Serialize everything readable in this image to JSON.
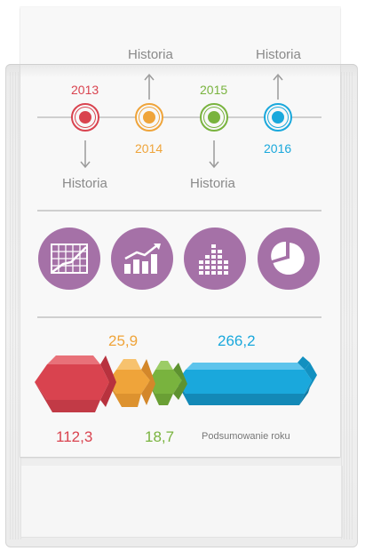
{
  "colors": {
    "red": "#d9434f",
    "orange": "#efa43a",
    "green": "#79b33e",
    "blue": "#1aa8dc",
    "purple": "#a571a7",
    "grey_text": "#8a8a8a"
  },
  "timeline": {
    "years": [
      "2013",
      "2014",
      "2015",
      "2016"
    ],
    "history_label": "Historia"
  },
  "icons": [
    "grid-chart-icon",
    "bar-line-chart-icon",
    "column-chart-icon",
    "pie-chart-icon"
  ],
  "summary": {
    "values": [
      "112,3",
      "25,9",
      "18,7",
      "266,2"
    ],
    "caption": "Podsumowanie roku"
  }
}
